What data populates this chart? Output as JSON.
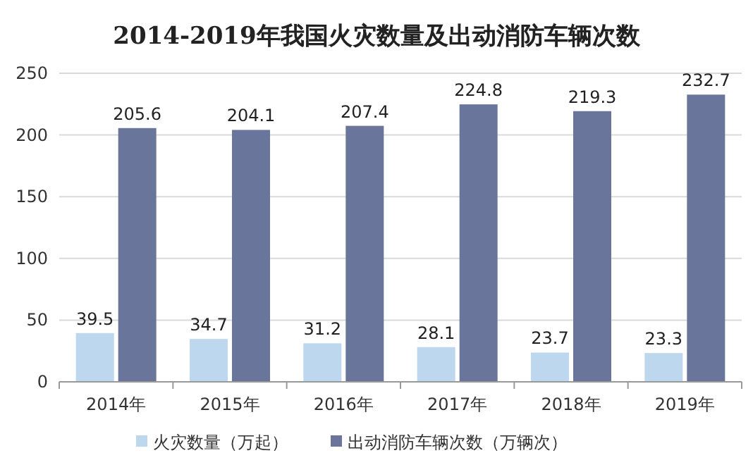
{
  "chart_data": {
    "type": "bar",
    "title": "2014-2019年我国火灾数量及出动消防车辆次数",
    "categories": [
      "2014年",
      "2015年",
      "2016年",
      "2017年",
      "2018年",
      "2019年"
    ],
    "series": [
      {
        "name": "火灾数量（万起）",
        "color": "#bdd7ee",
        "values": [
          39.5,
          34.7,
          31.2,
          28.1,
          23.7,
          23.3
        ]
      },
      {
        "name": "出动消防车辆次数（万辆次）",
        "color": "#69759a",
        "values": [
          205.6,
          204.1,
          207.4,
          224.8,
          219.3,
          232.7
        ]
      }
    ],
    "ylim": [
      0,
      250
    ],
    "yticks": [
      0,
      50,
      100,
      150,
      200,
      250
    ],
    "grid": "y",
    "legend": "bottom",
    "data_labels": true
  }
}
